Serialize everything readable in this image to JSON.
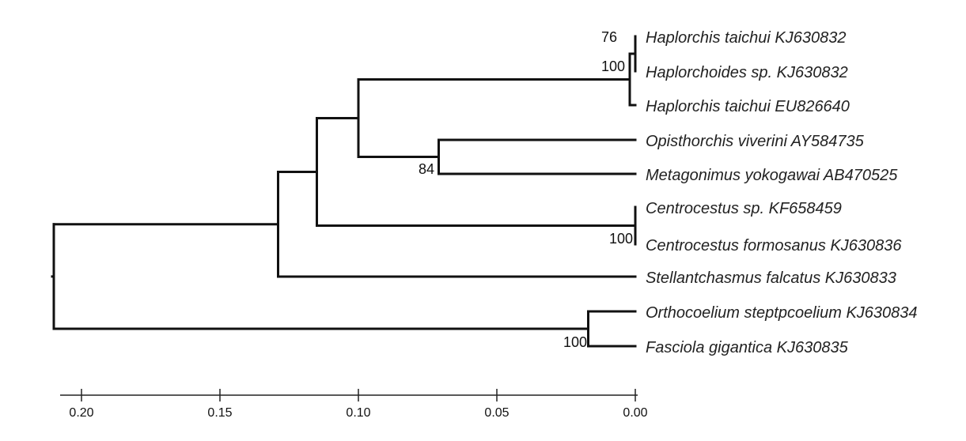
{
  "taxa": [
    "Haplorchis taichui KJ630832",
    "Haplorchoides sp. KJ630832",
    "Haplorchis taichui EU826640",
    "Opisthorchis viverini AY584735",
    "Metagonimus yokogawai AB470525",
    "Centrocestus sp. KF658459",
    "Centrocestus formosanus KJ630836",
    "Stellantchasmus falcatus KJ630833",
    "Orthocoelium steptpcoelium KJ630834",
    "Fasciola gigantica KJ630835"
  ],
  "support_values": [
    "76",
    "100",
    "84",
    "100",
    "100"
  ],
  "scale": {
    "ticks": [
      0.2,
      0.15,
      0.1,
      0.05,
      0.0
    ],
    "tick_labels": [
      "0.20",
      "0.15",
      "0.10",
      "0.05",
      "0.00"
    ]
  },
  "tree": {
    "height": 0.21,
    "nodes": [
      {
        "id": "root",
        "depth": 0.21,
        "children": [
          "A",
          "G"
        ]
      },
      {
        "id": "A",
        "depth": 0.129,
        "children": [
          "B",
          "t7"
        ]
      },
      {
        "id": "B",
        "depth": 0.115,
        "children": [
          "C",
          "F"
        ]
      },
      {
        "id": "C",
        "depth": 0.1,
        "children": [
          "D",
          "E"
        ]
      },
      {
        "id": "D",
        "depth": 0.002,
        "children": [
          "D1",
          "t2"
        ]
      },
      {
        "id": "D1",
        "depth": 0.0,
        "children": [
          "t0",
          "t1"
        ]
      },
      {
        "id": "E",
        "depth": 0.071,
        "children": [
          "t3",
          "t4"
        ]
      },
      {
        "id": "F",
        "depth": 0.0,
        "children": [
          "t5",
          "t6"
        ]
      },
      {
        "id": "G",
        "depth": 0.017,
        "children": [
          "t8",
          "t9"
        ]
      }
    ]
  }
}
